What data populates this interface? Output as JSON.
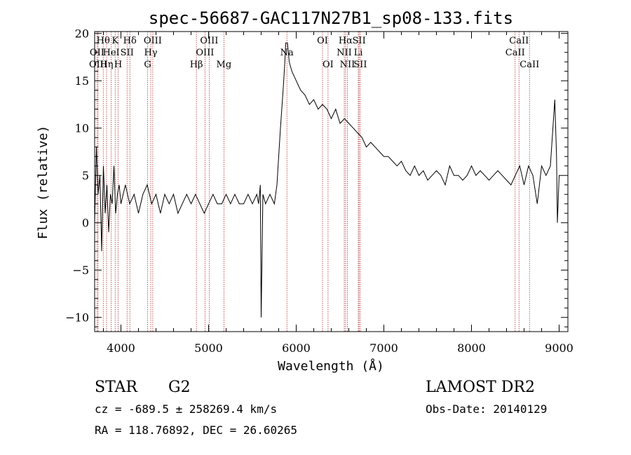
{
  "chart_data": {
    "type": "line",
    "title": "spec-56687-GAC117N27B1_sp08-133.fits",
    "xlabel": "Wavelength (Å)",
    "ylabel": "Flux (relative)",
    "xlim": [
      3700,
      9100
    ],
    "ylim": [
      -11.5,
      20.2
    ],
    "xticks": [
      4000,
      5000,
      6000,
      7000,
      8000,
      9000
    ],
    "yticks": [
      -10,
      -5,
      0,
      5,
      10,
      15,
      20
    ],
    "grid": false,
    "series": [
      {
        "x": [
          3700,
          3720,
          3740,
          3760,
          3780,
          3800,
          3820,
          3840,
          3860,
          3880,
          3900,
          3920,
          3940,
          3960,
          3980,
          4000,
          4050,
          4100,
          4150,
          4200,
          4250,
          4300,
          4350,
          4400,
          4450,
          4500,
          4550,
          4600,
          4650,
          4700,
          4750,
          4800,
          4850,
          4900,
          4950,
          5000,
          5050,
          5100,
          5150,
          5200,
          5250,
          5300,
          5350,
          5400,
          5450,
          5500,
          5550,
          5570,
          5590,
          5600,
          5620,
          5650,
          5700,
          5750,
          5780,
          5800,
          5820,
          5850,
          5870,
          5880,
          5900,
          5920,
          5950,
          6000,
          6050,
          6100,
          6150,
          6200,
          6250,
          6300,
          6350,
          6400,
          6450,
          6500,
          6550,
          6600,
          6650,
          6700,
          6750,
          6800,
          6850,
          6900,
          6950,
          7000,
          7050,
          7100,
          7150,
          7200,
          7250,
          7300,
          7350,
          7400,
          7450,
          7500,
          7550,
          7600,
          7650,
          7700,
          7750,
          7800,
          7850,
          7900,
          7950,
          8000,
          8050,
          8100,
          8150,
          8200,
          8250,
          8300,
          8350,
          8400,
          8450,
          8500,
          8550,
          8600,
          8650,
          8700,
          8750,
          8800,
          8850,
          8900,
          8950,
          8970,
          8980,
          9000,
          9020
        ],
        "y": [
          0,
          8,
          3,
          5,
          -3,
          6,
          1,
          4,
          -1,
          3,
          2,
          6,
          1,
          3,
          4,
          2,
          4,
          2,
          3,
          1,
          3,
          4,
          2,
          3,
          1,
          3,
          2,
          3,
          1,
          2,
          3,
          2,
          3,
          2,
          1,
          2,
          3,
          2,
          2,
          3,
          2,
          3,
          2,
          2,
          3,
          2,
          3,
          2,
          4,
          -10,
          3,
          2,
          3,
          2,
          4,
          7,
          10,
          14,
          17,
          19,
          19,
          17,
          16,
          15,
          14,
          13.5,
          12.5,
          13,
          12,
          12.5,
          12,
          11,
          12,
          10.5,
          11,
          10.5,
          10,
          9.5,
          9,
          8,
          8.5,
          8,
          7.5,
          7,
          7,
          6.5,
          6,
          6.5,
          5.5,
          5,
          6,
          5,
          5.5,
          4.5,
          5,
          5.5,
          5,
          4,
          6,
          5,
          5,
          4.5,
          5,
          6,
          5,
          5.5,
          5,
          4.5,
          5,
          5.5,
          5,
          4.5,
          4,
          5,
          6,
          4,
          6,
          5,
          2,
          6,
          5,
          6,
          13,
          7,
          0,
          5,
          5
        ]
      }
    ],
    "annotations": [
      {
        "label": "Hθ",
        "x": 3798,
        "row": 1
      },
      {
        "label": "OII",
        "x": 3727,
        "row": 2
      },
      {
        "label": "OIII",
        "x": 3740,
        "row": 3
      },
      {
        "label": "K",
        "x": 3934,
        "row": 1
      },
      {
        "label": "Hη",
        "x": 3836,
        "row": 3
      },
      {
        "label": "HeI",
        "x": 3889,
        "row": 2
      },
      {
        "label": "H",
        "x": 3968,
        "row": 3
      },
      {
        "label": "SII",
        "x": 4070,
        "row": 2
      },
      {
        "label": "Hδ",
        "x": 4102,
        "row": 1
      },
      {
        "label": "OIII",
        "x": 4363,
        "row": 1
      },
      {
        "label": "Hγ",
        "x": 4340,
        "row": 2
      },
      {
        "label": "G",
        "x": 4305,
        "row": 3
      },
      {
        "label": "Hβ",
        "x": 4861,
        "row": 3
      },
      {
        "label": "OIII",
        "x": 5007,
        "row": 1
      },
      {
        "label": "OIII",
        "x": 4959,
        "row": 2
      },
      {
        "label": "Mg",
        "x": 5175,
        "row": 3
      },
      {
        "label": "Na",
        "x": 5894,
        "row": 2
      },
      {
        "label": "OI",
        "x": 6300,
        "row": 1
      },
      {
        "label": "OI",
        "x": 6363,
        "row": 3
      },
      {
        "label": "Hα",
        "x": 6563,
        "row": 1
      },
      {
        "label": "NII",
        "x": 6548,
        "row": 2
      },
      {
        "label": "NII",
        "x": 6584,
        "row": 3
      },
      {
        "label": "SII",
        "x": 6717,
        "row": 1
      },
      {
        "label": "Li",
        "x": 6708,
        "row": 2
      },
      {
        "label": "SII",
        "x": 6731,
        "row": 3
      },
      {
        "label": "CaII",
        "x": 8542,
        "row": 1
      },
      {
        "label": "CaII",
        "x": 8498,
        "row": 2
      },
      {
        "label": "CaII",
        "x": 8662,
        "row": 3
      }
    ]
  },
  "info": {
    "object_class": "STAR",
    "subclass": "G2",
    "survey": "LAMOST DR2",
    "cz": "cz = -689.5 ± 258269.4 km/s",
    "obs_date": "Obs-Date: 20140129",
    "radec": "RA = 118.76892, DEC =  26.60265"
  },
  "colors": {
    "line": "#000000",
    "marker": "#b03030",
    "background": "#ffffff"
  }
}
